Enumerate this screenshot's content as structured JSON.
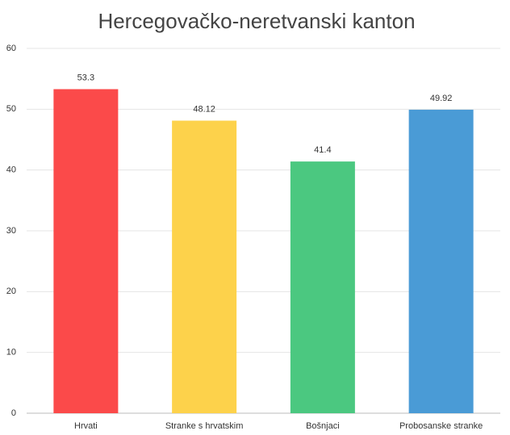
{
  "chart_data": {
    "type": "bar",
    "title": "Hercegovačko-neretvanski kanton",
    "categories": [
      "Hrvati",
      "Stranke s hrvatskim",
      "Bošnjaci",
      "Probosanske stranke"
    ],
    "values": [
      53.3,
      48.12,
      41.4,
      49.92
    ],
    "colors": [
      "#fb4a4a",
      "#fdd24b",
      "#4bc880",
      "#4a9bd6"
    ],
    "ylim": [
      0,
      60
    ],
    "yticks": [
      0,
      10,
      20,
      30,
      40,
      50,
      60
    ],
    "grid": true
  }
}
